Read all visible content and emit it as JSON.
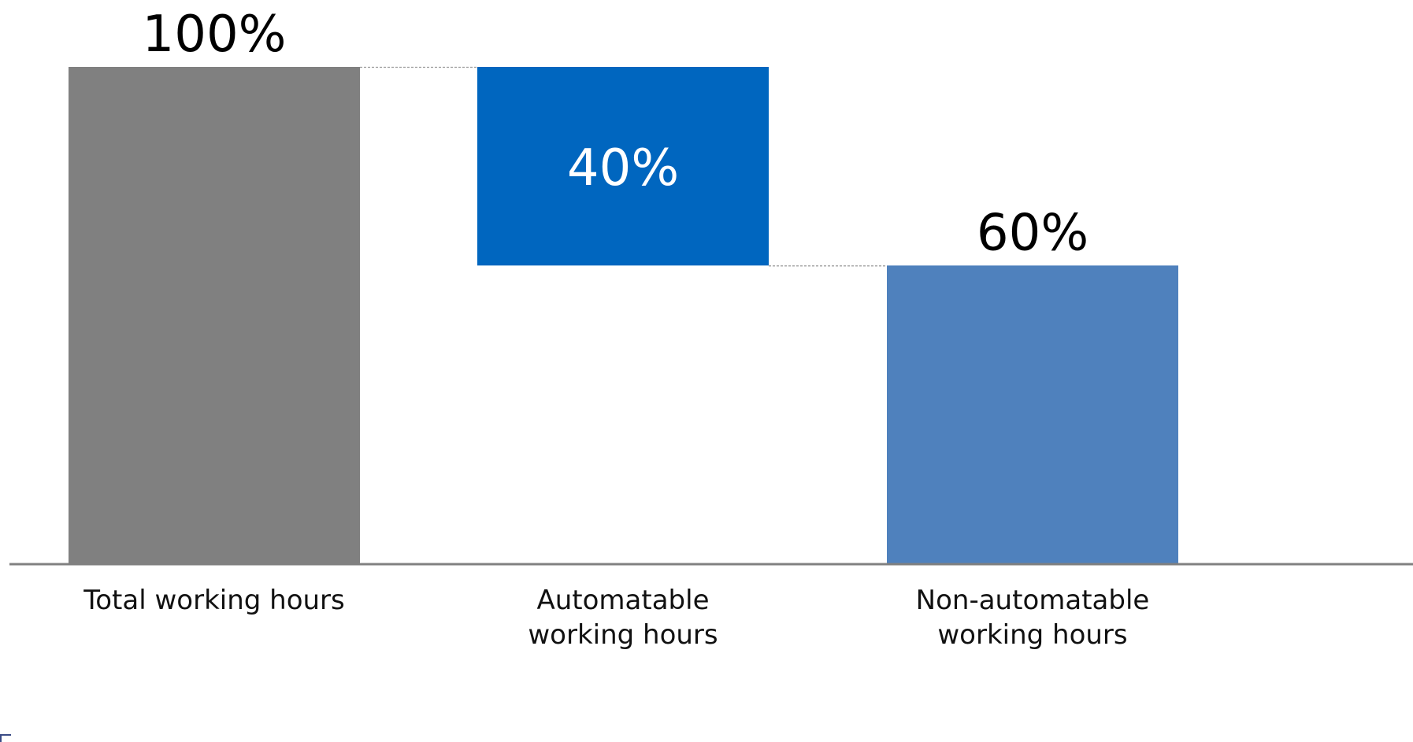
{
  "chart_data": {
    "type": "bar",
    "subtype": "waterfall",
    "categories": [
      [
        "Total working hours"
      ],
      [
        "Automatable",
        "working hours"
      ],
      [
        "Non-automatable",
        "working hours"
      ]
    ],
    "bars": [
      {
        "label": "100%",
        "start": 0,
        "end": 100,
        "color": "#808080",
        "label_color": "#000000",
        "label_position": "above"
      },
      {
        "label": "40%",
        "start": 60,
        "end": 100,
        "color": "#0066BF",
        "label_color": "#ffffff",
        "label_position": "inside"
      },
      {
        "label": "60%",
        "start": 0,
        "end": 60,
        "color": "#4F81BD",
        "label_color": "#000000",
        "label_position": "above"
      }
    ],
    "ylim": [
      0,
      100
    ],
    "grid": false,
    "connector_lines": true,
    "axis_color": "#808080",
    "connector_color": "#9a9a9a"
  }
}
